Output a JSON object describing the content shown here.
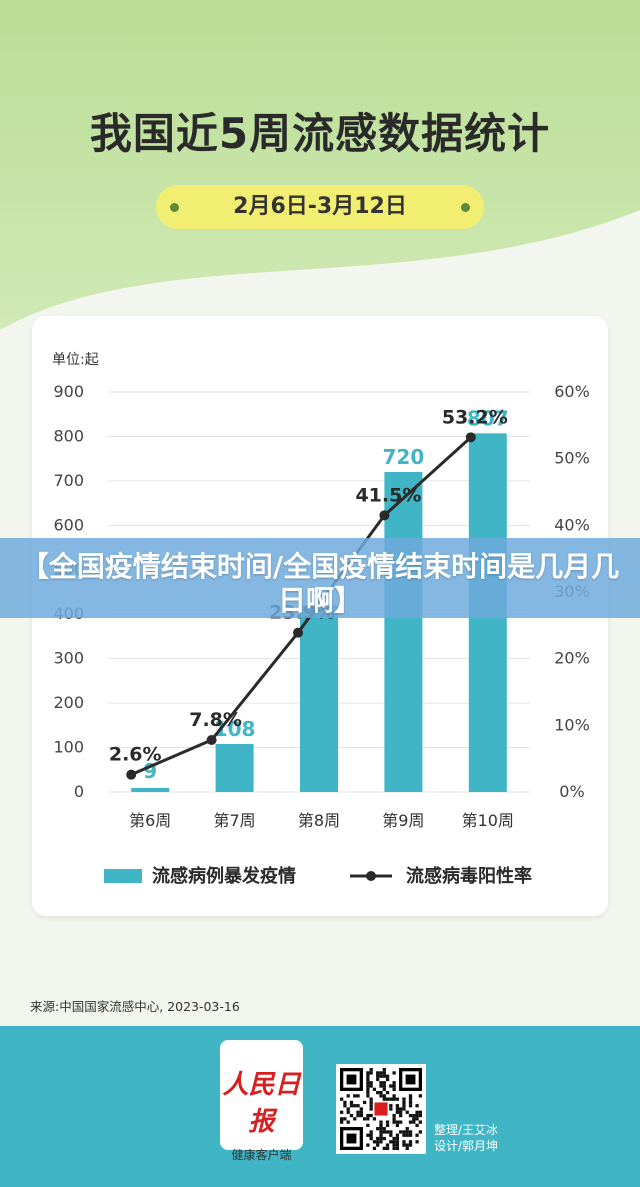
{
  "header": {
    "title": "我国近5周流感数据统计",
    "date_range": "2月6日-3月12日"
  },
  "overlay": {
    "text": "【全国疫情结束时间/全国疫情结束时间是几月几日啊】"
  },
  "chart_data": {
    "type": "bar",
    "unit_label": "单位:起",
    "categories": [
      "第6周",
      "第7周",
      "第8周",
      "第9周",
      "第10周"
    ],
    "series": [
      {
        "name": "流感病例暴发疫情",
        "type": "bar",
        "axis": "left",
        "values": [
          9,
          108,
          419,
          720,
          807
        ],
        "value_labels": [
          "9",
          "108",
          "",
          "720",
          "807"
        ],
        "color": "#3fb5c6"
      },
      {
        "name": "流感病毒阳性率",
        "type": "line",
        "axis": "right",
        "values": [
          2.6,
          7.8,
          23.9,
          41.5,
          53.2
        ],
        "value_labels": [
          "2.6%",
          "7.8%",
          "23.9%",
          "41.5%",
          "53.2%"
        ],
        "color": "#2a2a2a"
      }
    ],
    "left_axis": {
      "ticks": [
        "0",
        "100",
        "200",
        "300",
        "400",
        "500",
        "600",
        "700",
        "800",
        "900"
      ],
      "ylim": [
        0,
        900
      ]
    },
    "right_axis": {
      "ticks": [
        "0%",
        "10%",
        "20%",
        "30%",
        "40%",
        "50%",
        "60%"
      ],
      "ylim": [
        0,
        60
      ]
    },
    "grid": true,
    "legend_position": "bottom"
  },
  "footer": {
    "source": "来源:中国国家流感中心, 2023-03-16",
    "logo_main": "人民日报",
    "logo_sub": "健康客户端",
    "credit_line1": "整理/王艾冰",
    "credit_line2": "设计/郭月坤"
  },
  "colors": {
    "bar": "#3fb5c6",
    "line": "#2a2a2a",
    "accent_green": "#b9de95",
    "pill_yellow": "#f2ee72",
    "footer_teal": "#3fb5c6"
  }
}
